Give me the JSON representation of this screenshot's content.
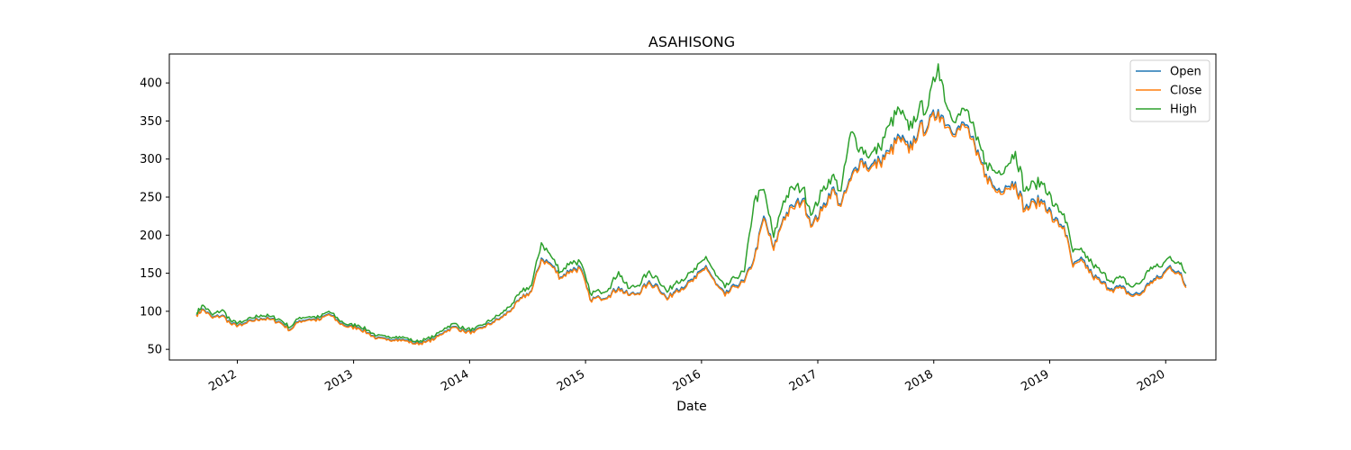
{
  "chart_data": {
    "type": "line",
    "title": "ASAHISONG",
    "xlabel": "Date",
    "ylabel": "",
    "xlim": [
      "2011-06-01",
      "2020-06-07"
    ],
    "ylim": [
      36,
      438
    ],
    "x_ticks": [
      "2012",
      "2013",
      "2014",
      "2015",
      "2016",
      "2017",
      "2018",
      "2019",
      "2020"
    ],
    "y_ticks": [
      50,
      100,
      150,
      200,
      250,
      300,
      350,
      400
    ],
    "grid": false,
    "legend": "top-right",
    "x": [
      "2011-08-25",
      "2011-09-15",
      "2011-10-15",
      "2011-11-15",
      "2011-12-15",
      "2012-01-15",
      "2012-02-15",
      "2012-03-15",
      "2012-04-15",
      "2012-05-15",
      "2012-06-15",
      "2012-07-15",
      "2012-08-15",
      "2012-09-15",
      "2012-10-15",
      "2012-11-15",
      "2012-12-15",
      "2013-01-15",
      "2013-02-15",
      "2013-03-15",
      "2013-04-15",
      "2013-05-15",
      "2013-06-15",
      "2013-07-15",
      "2013-08-15",
      "2013-09-15",
      "2013-10-15",
      "2013-11-15",
      "2013-12-15",
      "2014-01-15",
      "2014-02-15",
      "2014-03-15",
      "2014-04-15",
      "2014-05-15",
      "2014-06-15",
      "2014-07-15",
      "2014-08-15",
      "2014-09-15",
      "2014-10-15",
      "2014-11-15",
      "2014-12-15",
      "2015-01-15",
      "2015-02-15",
      "2015-03-15",
      "2015-04-15",
      "2015-05-15",
      "2015-06-15",
      "2015-07-15",
      "2015-08-15",
      "2015-09-15",
      "2015-10-15",
      "2015-11-15",
      "2015-12-15",
      "2016-01-15",
      "2016-02-15",
      "2016-03-15",
      "2016-04-15",
      "2016-05-15",
      "2016-06-15",
      "2016-07-15",
      "2016-08-15",
      "2016-09-15",
      "2016-10-15",
      "2016-11-15",
      "2016-12-15",
      "2017-01-15",
      "2017-02-15",
      "2017-03-15",
      "2017-04-15",
      "2017-05-15",
      "2017-06-15",
      "2017-07-15",
      "2017-08-15",
      "2017-09-15",
      "2017-10-15",
      "2017-11-15",
      "2017-12-15",
      "2018-01-15",
      "2018-02-15",
      "2018-03-15",
      "2018-04-15",
      "2018-05-15",
      "2018-06-15",
      "2018-07-15",
      "2018-08-15",
      "2018-09-15",
      "2018-10-15",
      "2018-11-15",
      "2018-12-15",
      "2019-01-15",
      "2019-02-15",
      "2019-03-15",
      "2019-04-15",
      "2019-05-15",
      "2019-06-15",
      "2019-07-15",
      "2019-08-15",
      "2019-09-15",
      "2019-10-15",
      "2019-11-15",
      "2019-12-15",
      "2020-01-15",
      "2020-02-15",
      "2020-03-05"
    ],
    "series": [
      {
        "name": "Open",
        "color": "#1f77b4",
        "values": [
          96,
          103,
          92,
          95,
          83,
          82,
          88,
          91,
          90,
          86,
          76,
          88,
          90,
          89,
          97,
          86,
          80,
          79,
          72,
          65,
          63,
          64,
          62,
          58,
          60,
          65,
          74,
          80,
          74,
          73,
          80,
          86,
          93,
          104,
          118,
          127,
          170,
          162,
          145,
          155,
          158,
          116,
          118,
          121,
          132,
          122,
          124,
          137,
          135,
          116,
          130,
          135,
          145,
          160,
          136,
          122,
          134,
          140,
          170,
          225,
          182,
          224,
          238,
          248,
          214,
          235,
          262,
          240,
          275,
          300,
          290,
          298,
          310,
          330,
          312,
          340,
          345,
          365,
          345,
          340,
          345,
          308,
          280,
          260,
          265,
          270,
          235,
          245,
          245,
          220,
          212,
          160,
          168,
          148,
          138,
          130,
          132,
          122,
          124,
          140,
          145,
          160,
          150,
          133
        ]
      },
      {
        "name": "Close",
        "color": "#ff7f0e",
        "values": [
          95,
          102,
          91,
          94,
          82,
          81,
          87,
          90,
          89,
          85,
          75,
          87,
          89,
          88,
          96,
          85,
          79,
          78,
          71,
          64,
          62,
          63,
          61,
          57,
          59,
          64,
          73,
          79,
          73,
          72,
          79,
          85,
          92,
          103,
          117,
          126,
          168,
          160,
          144,
          153,
          156,
          115,
          117,
          120,
          130,
          121,
          123,
          135,
          133,
          115,
          128,
          133,
          143,
          158,
          135,
          120,
          132,
          138,
          168,
          222,
          180,
          222,
          235,
          245,
          212,
          232,
          259,
          238,
          272,
          297,
          287,
          295,
          307,
          327,
          308,
          337,
          342,
          362,
          342,
          337,
          342,
          305,
          278,
          257,
          262,
          267,
          232,
          242,
          242,
          217,
          210,
          158,
          165,
          146,
          136,
          128,
          130,
          120,
          122,
          138,
          143,
          158,
          148,
          131
        ]
      },
      {
        "name": "High",
        "color": "#2ca02c",
        "values": [
          98,
          108,
          95,
          102,
          86,
          85,
          91,
          95,
          93,
          89,
          79,
          92,
          93,
          92,
          100,
          89,
          82,
          82,
          75,
          68,
          66,
          67,
          65,
          60,
          63,
          68,
          78,
          84,
          77,
          76,
          83,
          90,
          98,
          110,
          126,
          134,
          190,
          172,
          152,
          165,
          165,
          124,
          126,
          130,
          152,
          130,
          134,
          150,
          145,
          125,
          140,
          145,
          155,
          172,
          147,
          131,
          144,
          152,
          245,
          260,
          197,
          245,
          262,
          262,
          228,
          258,
          278,
          258,
          335,
          315,
          305,
          315,
          345,
          365,
          338,
          365,
          370,
          425,
          365,
          355,
          365,
          325,
          295,
          282,
          290,
          310,
          258,
          268,
          268,
          238,
          228,
          178,
          178,
          162,
          150,
          140,
          144,
          132,
          138,
          158,
          158,
          172,
          162,
          150
        ]
      }
    ]
  }
}
